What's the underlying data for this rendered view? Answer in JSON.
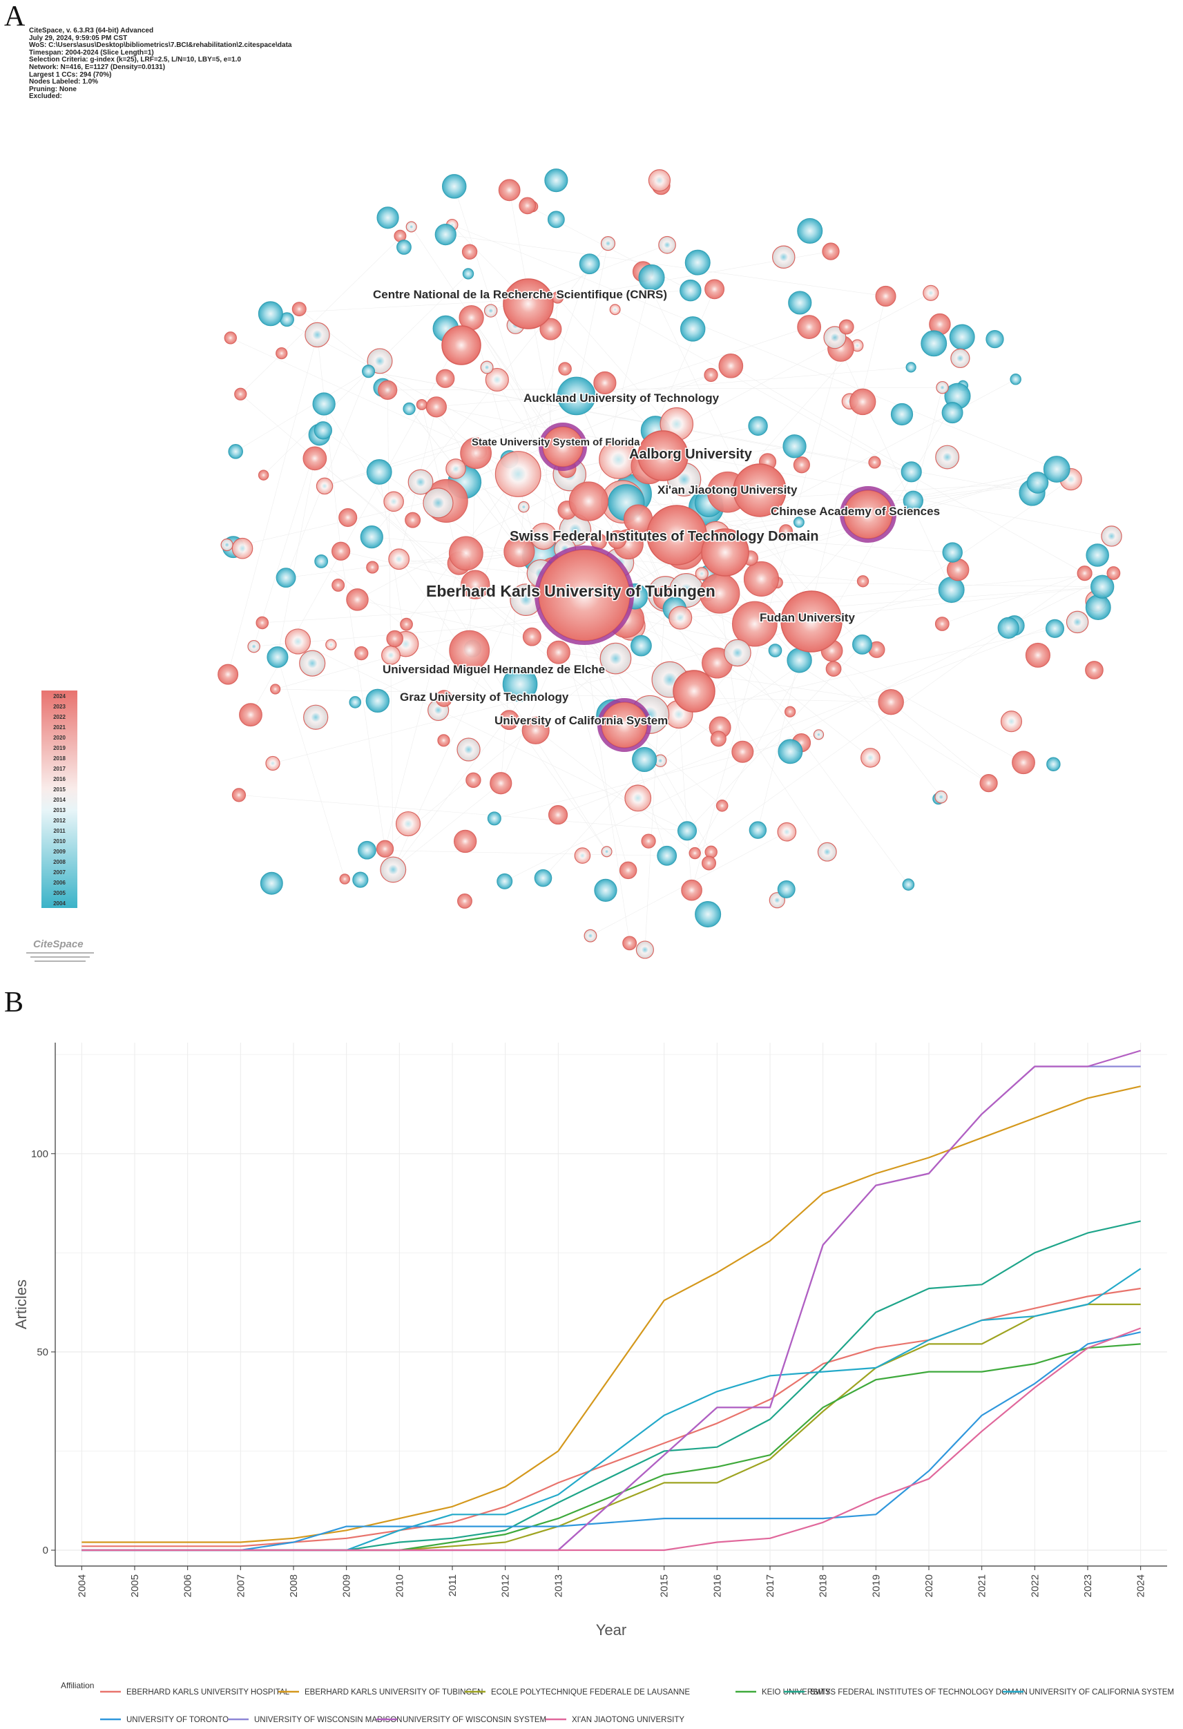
{
  "panels": {
    "a": "A",
    "b": "B"
  },
  "network_meta": [
    "CiteSpace, v. 6.3.R3 (64-bit) Advanced",
    "July 29, 2024, 9:59:05 PM CST",
    "WoS: C:\\Users\\asus\\Desktop\\bibliometrics\\7.BCI&rehabilitation\\2.citespace\\data",
    "Timespan: 2004-2024 (Slice Length=1)",
    "Selection Criteria: g-index (k=25), LRF=2.5, L/N=10, LBY=5, e=1.0",
    "Network: N=416, E=1127 (Density=0.0131)",
    "Largest 1 CCs: 294 (70%)",
    "Nodes Labeled: 1.0%",
    "Pruning: None",
    "Excluded:"
  ],
  "network_labels": [
    {
      "text": "Centre National de la Recherche Scientifique (CNRS)",
      "size": "sm"
    },
    {
      "text": "Auckland University of Technology",
      "size": "sm"
    },
    {
      "text": "State University System of Florida",
      "size": "xs"
    },
    {
      "text": "Aalborg University",
      "size": "md"
    },
    {
      "text": "Xi'an Jiaotong University",
      "size": "sm"
    },
    {
      "text": "Chinese Academy of Sciences",
      "size": "sm"
    },
    {
      "text": "Swiss Federal Institutes of Technology Domain",
      "size": "md"
    },
    {
      "text": "Eberhard Karls University of Tubingen",
      "size": "lg"
    },
    {
      "text": "Fudan University",
      "size": "sm"
    },
    {
      "text": "Universidad Miguel Hernandez de Elche",
      "size": "sm"
    },
    {
      "text": "Graz University of Technology",
      "size": "sm"
    },
    {
      "text": "University of California System",
      "size": "sm"
    }
  ],
  "year_scale": [
    "2024",
    "2023",
    "2022",
    "2021",
    "2020",
    "2019",
    "2018",
    "2017",
    "2016",
    "2015",
    "2014",
    "2013",
    "2012",
    "2011",
    "2010",
    "2009",
    "2008",
    "2007",
    "2006",
    "2005",
    "2004"
  ],
  "logo_text": "CiteSpace",
  "colors": {
    "new": "#e8736f",
    "old": "#3bb3c8",
    "mid": "#f4eded",
    "burst_ring": "#a03a9a"
  },
  "chart_data": {
    "type": "line",
    "xlabel": "Year",
    "ylabel": "Articles",
    "x": [
      2004,
      2005,
      2006,
      2007,
      2008,
      2009,
      2010,
      2011,
      2012,
      2013,
      2015,
      2016,
      2017,
      2018,
      2019,
      2020,
      2021,
      2022,
      2023,
      2024
    ],
    "x_tick_labels": [
      "2004",
      "2005",
      "2006",
      "2007",
      "2008",
      "2009",
      "2010",
      "2011",
      "2012",
      "2013",
      "2015",
      "2016",
      "2017",
      "2018",
      "2019",
      "2020",
      "2021",
      "2022",
      "2023",
      "2024"
    ],
    "y_ticks": [
      0,
      50,
      100
    ],
    "ylim": [
      -4,
      128
    ],
    "legend_title": "Affiliation",
    "series": [
      {
        "name": "EBERHARD KARLS UNIVERSITY HOSPITAL",
        "color": "#e8736c",
        "values": [
          1,
          1,
          1,
          1,
          2,
          3,
          5,
          7,
          11,
          17,
          27,
          32,
          38,
          47,
          51,
          53,
          58,
          61,
          64,
          66
        ]
      },
      {
        "name": "EBERHARD KARLS UNIVERSITY OF TUBINGEN",
        "color": "#d4981c",
        "values": [
          2,
          2,
          2,
          2,
          3,
          5,
          8,
          11,
          16,
          25,
          63,
          70,
          78,
          90,
          95,
          99,
          104,
          109,
          114,
          117
        ]
      },
      {
        "name": "ECOLE POLYTECHNIQUE FEDERALE DE LAUSANNE",
        "color": "#9ea421",
        "values": [
          0,
          0,
          0,
          0,
          0,
          0,
          0,
          1,
          2,
          6,
          17,
          17,
          23,
          35,
          46,
          52,
          52,
          59,
          62,
          62
        ]
      },
      {
        "name": "KEIO UNIVERSITY",
        "color": "#3ea93b",
        "values": [
          0,
          0,
          0,
          0,
          0,
          0,
          0,
          2,
          4,
          8,
          19,
          21,
          24,
          36,
          43,
          45,
          45,
          47,
          51,
          52
        ]
      },
      {
        "name": "SWISS FEDERAL INSTITUTES OF TECHNOLOGY DOMAIN",
        "color": "#1ea58a",
        "values": [
          0,
          0,
          0,
          0,
          0,
          0,
          2,
          3,
          5,
          12,
          25,
          26,
          33,
          46,
          60,
          66,
          67,
          75,
          80,
          83
        ]
      },
      {
        "name": "UNIVERSITY OF CALIFORNIA SYSTEM",
        "color": "#23a9c9",
        "values": [
          0,
          0,
          0,
          0,
          0,
          0,
          5,
          9,
          9,
          14,
          34,
          40,
          44,
          45,
          46,
          53,
          58,
          59,
          62,
          71
        ]
      },
      {
        "name": "UNIVERSITY OF TORONTO",
        "color": "#2f97dc",
        "values": [
          0,
          0,
          0,
          0,
          2,
          6,
          6,
          6,
          6,
          6,
          8,
          8,
          8,
          8,
          9,
          20,
          34,
          42,
          52,
          55
        ]
      },
      {
        "name": "UNIVERSITY OF WISCONSIN MADISON",
        "color": "#8d86d6",
        "values": [
          0,
          0,
          0,
          0,
          0,
          0,
          0,
          0,
          0,
          0,
          24,
          36,
          36,
          77,
          92,
          95,
          110,
          122,
          122,
          122
        ]
      },
      {
        "name": "UNIVERSITY OF WISCONSIN SYSTEM",
        "color": "#b35fc2",
        "values": [
          0,
          0,
          0,
          0,
          0,
          0,
          0,
          0,
          0,
          0,
          24,
          36,
          36,
          77,
          92,
          95,
          110,
          122,
          122,
          126
        ]
      },
      {
        "name": "XI'AN JIAOTONG UNIVERSITY",
        "color": "#e0679b",
        "values": [
          0,
          0,
          0,
          0,
          0,
          0,
          0,
          0,
          0,
          0,
          0,
          2,
          3,
          7,
          13,
          18,
          30,
          41,
          51,
          56
        ]
      }
    ]
  }
}
